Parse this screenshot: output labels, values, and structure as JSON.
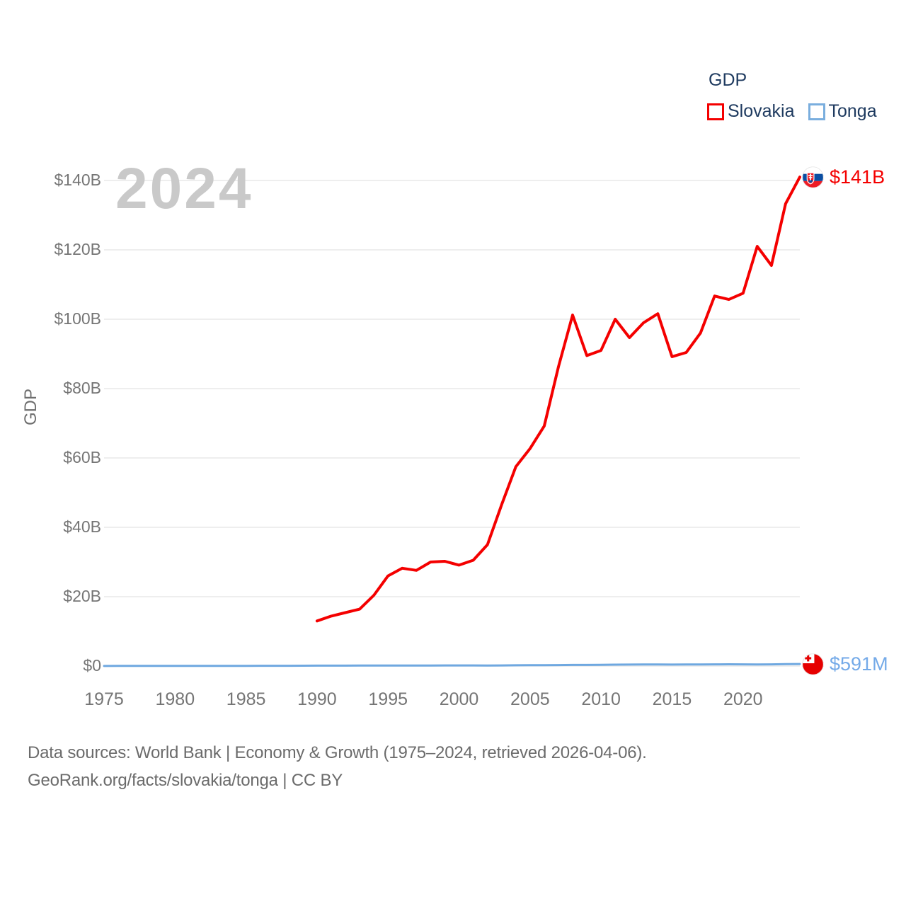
{
  "watermark": "2024",
  "y_axis_title": "GDP",
  "legend": {
    "title": "GDP",
    "items": [
      {
        "label": "Slovakia",
        "color": "#f40000"
      },
      {
        "label": "Tonga",
        "color": "#7aaede"
      }
    ]
  },
  "end_labels": [
    {
      "series": "Slovakia",
      "text": "$141B",
      "color": "#f40000",
      "flag": "slovakia-flag"
    },
    {
      "series": "Tonga",
      "text": "$591M",
      "color": "#74aae8",
      "flag": "tonga-flag"
    }
  ],
  "footer": {
    "line1": "Data sources: World Bank | Economy & Growth (1975–2024, retrieved 2026-04-06).",
    "line2": "GeoRank.org/facts/slovakia/tonga | CC BY"
  },
  "chart_data": {
    "type": "line",
    "title": "GDP",
    "xlabel": "",
    "ylabel": "GDP",
    "xlim": [
      1975,
      2024
    ],
    "ylim": [
      0,
      140
    ],
    "grid": true,
    "legend_position": "top-right",
    "y_ticks": [
      {
        "value": 0,
        "label": "$0"
      },
      {
        "value": 20,
        "label": "$20B"
      },
      {
        "value": 40,
        "label": "$40B"
      },
      {
        "value": 60,
        "label": "$60B"
      },
      {
        "value": 80,
        "label": "$80B"
      },
      {
        "value": 100,
        "label": "$100B"
      },
      {
        "value": 120,
        "label": "$120B"
      },
      {
        "value": 140,
        "label": "$140B"
      }
    ],
    "x_ticks": [
      1975,
      1980,
      1985,
      1990,
      1995,
      2000,
      2005,
      2010,
      2015,
      2020
    ],
    "series": [
      {
        "name": "Slovakia",
        "color": "#f40000",
        "unit": "billions USD",
        "final_value_label": "$141B",
        "years": [
          1990,
          1991,
          1992,
          1993,
          1994,
          1995,
          1996,
          1997,
          1998,
          1999,
          2000,
          2001,
          2002,
          2003,
          2004,
          2005,
          2006,
          2007,
          2008,
          2009,
          2010,
          2011,
          2012,
          2013,
          2014,
          2015,
          2016,
          2017,
          2018,
          2019,
          2020,
          2021,
          2022,
          2023,
          2024
        ],
        "values": [
          13.0,
          14.4,
          15.4,
          16.4,
          20.4,
          26.0,
          28.2,
          27.6,
          30.0,
          30.2,
          29.1,
          30.5,
          35.0,
          46.5,
          57.5,
          62.7,
          69.2,
          86.3,
          101.2,
          89.5,
          91.0,
          100.0,
          94.7,
          99.0,
          101.6,
          89.2,
          90.4,
          96.0,
          106.7,
          105.7,
          107.5,
          121.0,
          115.5,
          133.3,
          141.0
        ]
      },
      {
        "name": "Tonga",
        "color": "#6fa8e0",
        "unit": "millions USD",
        "final_value_label": "$591M",
        "years": [
          1975,
          1976,
          1977,
          1978,
          1979,
          1980,
          1981,
          1982,
          1983,
          1984,
          1985,
          1986,
          1987,
          1988,
          1989,
          1990,
          1991,
          1992,
          1993,
          1994,
          1995,
          1996,
          1997,
          1998,
          1999,
          2000,
          2001,
          2002,
          2003,
          2004,
          2005,
          2006,
          2007,
          2008,
          2009,
          2010,
          2011,
          2012,
          2013,
          2014,
          2015,
          2016,
          2017,
          2018,
          2019,
          2020,
          2021,
          2022,
          2023,
          2024
        ],
        "values": [
          30,
          33,
          36,
          41,
          46,
          50,
          53,
          56,
          59,
          62,
          65,
          72,
          80,
          90,
          101,
          114,
          122,
          130,
          138,
          150,
          162,
          170,
          165,
          161,
          175,
          189,
          181,
          172,
          190,
          222,
          265,
          271,
          289,
          326,
          317,
          369,
          410,
          434,
          439,
          445,
          435,
          442,
          458,
          489,
          512,
          491,
          469,
          488,
          547,
          591
        ]
      }
    ]
  }
}
